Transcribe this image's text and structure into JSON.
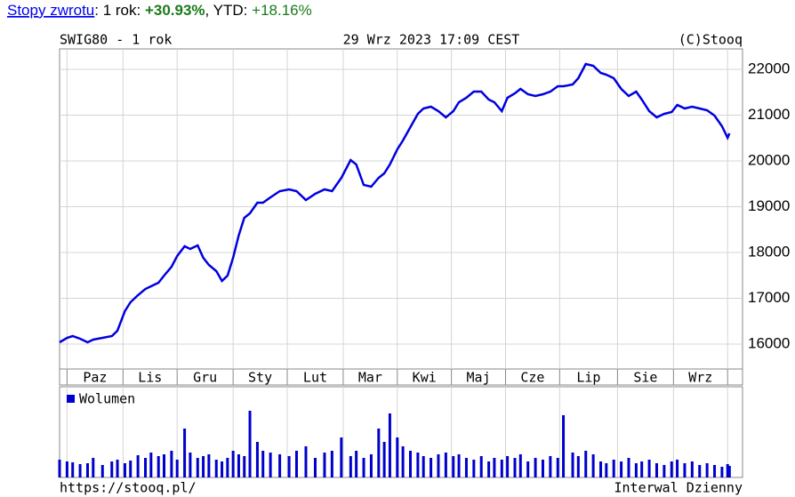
{
  "header": {
    "link": "Stopy zwrotu",
    "label_1y": ": 1 rok: ",
    "return_1y": "+30.93%",
    "label_ytd": ", YTD: ",
    "return_ytd": "+18.16%"
  },
  "footer": {
    "url": "https://stooq.pl/",
    "interval": "Interwal Dzienny"
  },
  "chart_data": [
    {
      "type": "line",
      "title": "SWIG80 - 1 rok",
      "subtitle": "29 Wrz 2023 17:09 CEST",
      "source": "(C)Stooq",
      "x": [
        0,
        4,
        7,
        11,
        15,
        18,
        23,
        28,
        31,
        35,
        38,
        42,
        46,
        49,
        53,
        56,
        60,
        63,
        67,
        70,
        74,
        77,
        80,
        84,
        87,
        90,
        93,
        96,
        99,
        102,
        106,
        109,
        113,
        118,
        123,
        127,
        132,
        137,
        142,
        146,
        151,
        156,
        159,
        163,
        167,
        171,
        174,
        177,
        181,
        184,
        188,
        192,
        195,
        199,
        203,
        207,
        211,
        214,
        218,
        222,
        226,
        230,
        233,
        237,
        240,
        244,
        247,
        251,
        255,
        259,
        263,
        267,
        270,
        275,
        278,
        282,
        286,
        290,
        293,
        297,
        301,
        305,
        309,
        312,
        316,
        320,
        324,
        328,
        331,
        335,
        339,
        343,
        347,
        351,
        355,
        358,
        359
      ],
      "values": [
        16039,
        16136,
        16175,
        16117,
        16039,
        16097,
        16136,
        16175,
        16291,
        16718,
        16913,
        17068,
        17204,
        17262,
        17340,
        17495,
        17689,
        17922,
        18136,
        18078,
        18155,
        17883,
        17728,
        17592,
        17379,
        17495,
        17883,
        18369,
        18757,
        18854,
        19087,
        19087,
        19204,
        19340,
        19379,
        19340,
        19146,
        19282,
        19379,
        19340,
        19631,
        20019,
        19922,
        19476,
        19437,
        19631,
        19728,
        19922,
        20252,
        20447,
        20738,
        21029,
        21146,
        21184,
        21087,
        20951,
        21087,
        21282,
        21379,
        21515,
        21515,
        21340,
        21282,
        21087,
        21379,
        21476,
        21573,
        21456,
        21417,
        21456,
        21515,
        21631,
        21631,
        21670,
        21806,
        22117,
        22078,
        21922,
        21883,
        21806,
        21573,
        21417,
        21515,
        21340,
        21087,
        20951,
        21029,
        21068,
        21223,
        21146,
        21184,
        21146,
        21107,
        20990,
        20757,
        20505,
        20602
      ],
      "color": "#0000e0",
      "xlim": [
        0,
        366
      ],
      "ylim": [
        15456,
        22447
      ],
      "xticks": [
        {
          "value": 4,
          "label": "Paz"
        },
        {
          "value": 34,
          "label": "Lis"
        },
        {
          "value": 63,
          "label": "Gru"
        },
        {
          "value": 93,
          "label": "Sty"
        },
        {
          "value": 122,
          "label": "Lut"
        },
        {
          "value": 152,
          "label": "Mar"
        },
        {
          "value": 181,
          "label": "Kwi"
        },
        {
          "value": 210,
          "label": "Maj"
        },
        {
          "value": 239,
          "label": "Cze"
        },
        {
          "value": 268,
          "label": "Lip"
        },
        {
          "value": 299,
          "label": "Sie"
        },
        {
          "value": 329,
          "label": "Wrz"
        },
        {
          "value": 358,
          "label": null
        }
      ],
      "yticks": [
        16000,
        17000,
        18000,
        19000,
        20000,
        21000,
        22000
      ],
      "grid": true
    },
    {
      "type": "bar",
      "x": [
        0,
        4,
        7,
        11,
        15,
        18,
        23,
        28,
        31,
        35,
        38,
        42,
        46,
        49,
        53,
        56,
        60,
        63,
        67,
        70,
        74,
        77,
        80,
        84,
        87,
        90,
        93,
        96,
        99,
        102,
        106,
        109,
        113,
        118,
        123,
        127,
        132,
        137,
        142,
        146,
        151,
        156,
        159,
        163,
        167,
        171,
        174,
        177,
        181,
        184,
        188,
        192,
        195,
        199,
        203,
        207,
        211,
        214,
        218,
        222,
        226,
        230,
        233,
        237,
        240,
        244,
        247,
        251,
        255,
        259,
        263,
        267,
        270,
        275,
        278,
        282,
        286,
        290,
        293,
        297,
        301,
        305,
        309,
        312,
        316,
        320,
        324,
        328,
        331,
        335,
        339,
        343,
        347,
        351,
        355,
        358,
        359
      ],
      "series": [
        {
          "name": "Wolumen",
          "color": "#0000cc",
          "values": [
            20,
            18,
            17,
            15,
            16,
            22,
            14,
            18,
            20,
            16,
            19,
            25,
            22,
            28,
            24,
            26,
            30,
            20,
            55,
            28,
            22,
            24,
            26,
            20,
            18,
            22,
            30,
            26,
            24,
            75,
            40,
            30,
            28,
            26,
            24,
            30,
            35,
            22,
            28,
            30,
            45,
            24,
            30,
            22,
            26,
            55,
            40,
            72,
            45,
            35,
            30,
            28,
            24,
            22,
            26,
            28,
            24,
            26,
            22,
            20,
            24,
            18,
            22,
            20,
            24,
            22,
            26,
            18,
            22,
            20,
            24,
            22,
            70,
            28,
            24,
            30,
            26,
            18,
            16,
            20,
            18,
            22,
            16,
            18,
            20,
            16,
            14,
            18,
            20,
            16,
            18,
            14,
            16,
            14,
            12,
            15,
            13
          ]
        }
      ],
      "xlim": [
        0,
        366
      ],
      "ylim": [
        0,
        102
      ],
      "grid": true
    }
  ]
}
